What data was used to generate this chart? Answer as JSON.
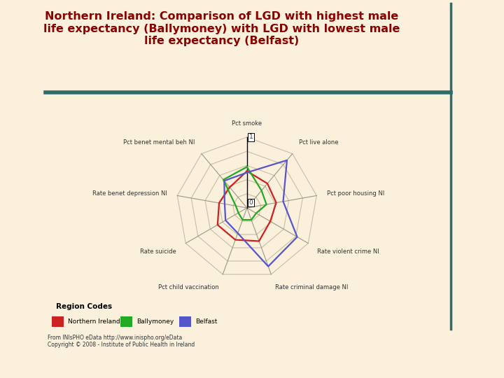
{
  "title": "Northern Ireland: Comparison of LGD with highest male\nlife expectancy (Ballymoney) with LGD with lowest male\nlife expectancy (Belfast)",
  "title_color": "#8B0000",
  "bg_color": "#FAF0DC",
  "plot_bg": "#FAF0DC",
  "categories": [
    "Pct smoke",
    "Pct live alone",
    "Pct poor housing NI",
    "Rate violent crime NI",
    "Rate criminal damage NI",
    "Pct child vaccination",
    "Rate suicide",
    "Rate benet depression NI",
    "Pct benet mental beh NI"
  ],
  "series": {
    "Northern Ireland": {
      "values": [
        0.52,
        0.45,
        0.42,
        0.38,
        0.5,
        0.48,
        0.48,
        0.4,
        0.38
      ],
      "color": "#CC2222"
    },
    "Ballymoney": {
      "values": [
        0.58,
        0.32,
        0.28,
        0.15,
        0.18,
        0.18,
        0.14,
        0.16,
        0.52
      ],
      "color": "#22AA22"
    },
    "Belfast": {
      "values": [
        0.5,
        0.88,
        0.52,
        0.82,
        0.88,
        0.38,
        0.35,
        0.32,
        0.5
      ],
      "color": "#5555CC"
    }
  },
  "grid_levels": 5,
  "footer": "From INIsPHO eData http://www.inispho.org/eData\nCopyright © 2008 - Institute of Public Health in Ireland",
  "legend_title": "Region Codes",
  "legend_labels": [
    "Northern Ireland",
    "Ballymoney",
    "Belfast"
  ],
  "legend_colors": [
    "#CC2222",
    "#22AA22",
    "#5555CC"
  ],
  "ring_labels": [
    "0",
    "1"
  ],
  "separator_color": "#2F6B6B",
  "grid_color": "#C8BFA0",
  "spoke_color": "#999988"
}
